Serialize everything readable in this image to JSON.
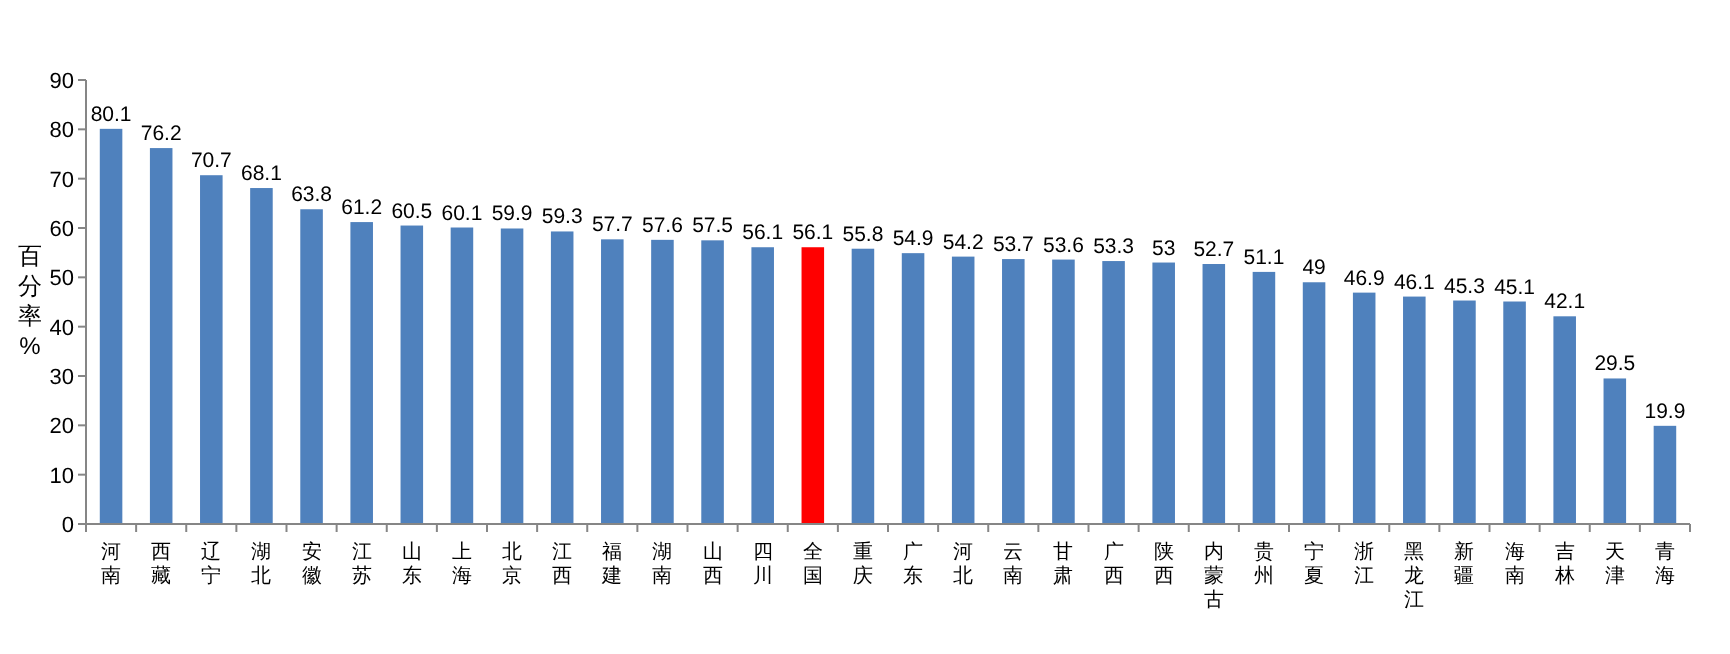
{
  "chart_data": {
    "type": "bar",
    "ylabel": "百分率%",
    "categories": [
      "河南",
      "西藏",
      "辽宁",
      "湖北",
      "安徽",
      "江苏",
      "山东",
      "上海",
      "北京",
      "江西",
      "福建",
      "湖南",
      "山西",
      "四川",
      "全国",
      "重庆",
      "广东",
      "河北",
      "云南",
      "甘肃",
      "广西",
      "陕西",
      "内蒙古",
      "贵州",
      "宁夏",
      "浙江",
      "黑龙江",
      "新疆",
      "海南",
      "吉林",
      "天津",
      "青海"
    ],
    "values": [
      80.1,
      76.2,
      70.7,
      68.1,
      63.8,
      61.2,
      60.5,
      60.1,
      59.9,
      59.3,
      57.7,
      57.6,
      57.5,
      56.1,
      56.1,
      55.8,
      54.9,
      54.2,
      53.7,
      53.6,
      53.3,
      53,
      52.7,
      51.1,
      49,
      46.9,
      46.1,
      45.3,
      45.1,
      42.1,
      29.5,
      19.9
    ],
    "colors": [
      "#4f81bd",
      "#4f81bd",
      "#4f81bd",
      "#4f81bd",
      "#4f81bd",
      "#4f81bd",
      "#4f81bd",
      "#4f81bd",
      "#4f81bd",
      "#4f81bd",
      "#4f81bd",
      "#4f81bd",
      "#4f81bd",
      "#4f81bd",
      "#ff0000",
      "#4f81bd",
      "#4f81bd",
      "#4f81bd",
      "#4f81bd",
      "#4f81bd",
      "#4f81bd",
      "#4f81bd",
      "#4f81bd",
      "#4f81bd",
      "#4f81bd",
      "#4f81bd",
      "#4f81bd",
      "#4f81bd",
      "#4f81bd",
      "#4f81bd",
      "#4f81bd",
      "#4f81bd"
    ],
    "ylim": [
      0,
      90
    ],
    "yticks": [
      0,
      10,
      20,
      30,
      40,
      50,
      60,
      70,
      80,
      90
    ],
    "data_labels": true,
    "grid": false
  }
}
